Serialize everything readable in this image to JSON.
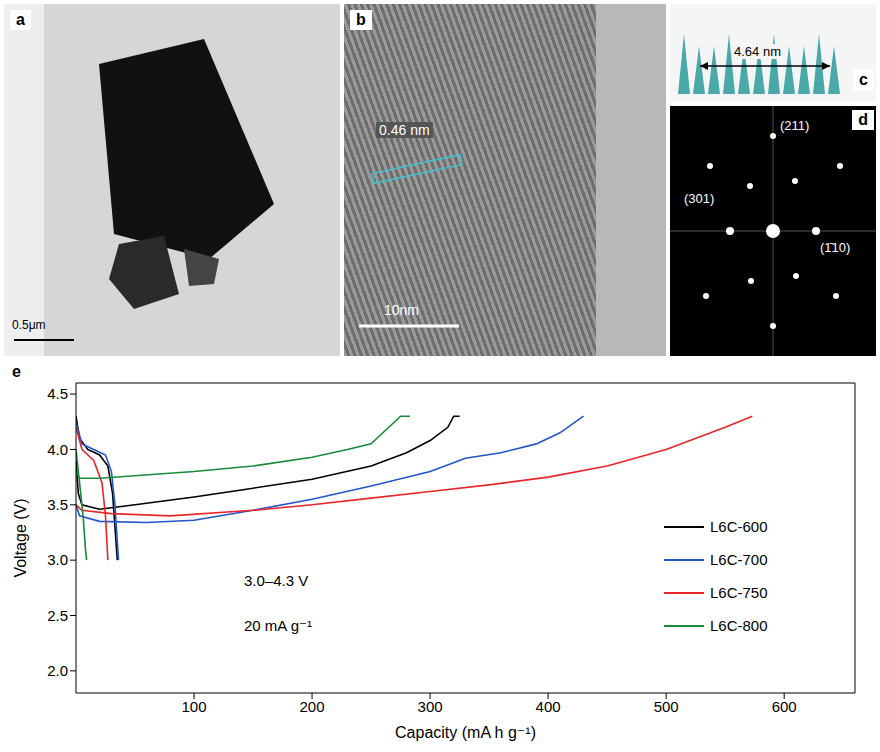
{
  "panels": [
    {
      "label": "a",
      "scale_bar": "0.5μm"
    },
    {
      "label": "b",
      "spacing": "0.46 nm",
      "scale_bar": "10nm"
    },
    {
      "label": "c",
      "distance": "4.64 nm"
    },
    {
      "label": "d",
      "spots": [
        "(211)",
        "(301)",
        "(1̄10)"
      ]
    }
  ],
  "chart_data": {
    "label": "e",
    "type": "line",
    "xlabel": "Capacity (mA h g⁻¹)",
    "ylabel": "Voltage (V)",
    "annotations": [
      "3.0–4.3 V",
      "20 mA g⁻¹"
    ],
    "xlim": [
      0,
      660
    ],
    "xticks": [
      100,
      200,
      300,
      400,
      500,
      600
    ],
    "ylim": [
      1.8,
      4.6
    ],
    "yticks": [
      {
        "value": 2,
        "label": "2.0"
      },
      2.5,
      {
        "value": 3,
        "label": "3.0"
      },
      3.5,
      {
        "value": 4,
        "label": "4.0"
      },
      4.5
    ],
    "legend": "right",
    "series": [
      {
        "name": "L6C-600",
        "color": "#000000",
        "x": [
          0,
          3,
          10,
          20,
          27,
          31,
          33,
          35,
          35,
          0,
          2,
          5,
          20,
          50,
          100,
          150,
          200,
          250,
          280,
          300,
          315,
          320,
          325
        ],
        "values": [
          4.3,
          4.1,
          4.0,
          3.95,
          3.85,
          3.6,
          3.3,
          3.0,
          null,
          3.9,
          3.6,
          3.5,
          3.46,
          3.5,
          3.57,
          3.65,
          3.73,
          3.85,
          3.97,
          4.08,
          4.2,
          4.3,
          4.3
        ]
      },
      {
        "name": "L6C-700",
        "color": "#2255cc",
        "x": [
          0,
          5,
          15,
          25,
          30,
          33,
          36,
          36,
          0,
          3,
          20,
          60,
          100,
          150,
          200,
          250,
          300,
          330,
          360,
          390,
          410,
          430
        ],
        "values": [
          4.25,
          4.05,
          4.0,
          3.95,
          3.8,
          3.5,
          3.0,
          null,
          3.5,
          3.4,
          3.35,
          3.34,
          3.36,
          3.45,
          3.55,
          3.67,
          3.8,
          3.92,
          3.97,
          4.05,
          4.15,
          4.3
        ]
      },
      {
        "name": "L6C-750",
        "color": "#e8262a",
        "x": [
          0,
          5,
          15,
          22,
          25,
          27,
          27,
          0,
          5,
          30,
          80,
          150,
          200,
          250,
          300,
          350,
          400,
          450,
          500,
          550,
          573
        ],
        "values": [
          4.2,
          4.0,
          3.9,
          3.7,
          3.4,
          3.0,
          null,
          3.5,
          3.45,
          3.42,
          3.4,
          3.45,
          3.5,
          3.56,
          3.62,
          3.68,
          3.75,
          3.85,
          4.0,
          4.2,
          4.3
        ]
      },
      {
        "name": "L6C-800",
        "color": "#1a8a3a",
        "x": [
          0,
          3,
          6,
          8,
          9,
          9,
          0,
          3,
          20,
          100,
          150,
          200,
          230,
          250,
          265,
          275,
          283
        ],
        "values": [
          4.0,
          3.7,
          3.4,
          3.1,
          3.0,
          null,
          3.8,
          3.74,
          3.74,
          3.8,
          3.85,
          3.93,
          4.0,
          4.05,
          4.2,
          4.3,
          4.3
        ]
      }
    ]
  }
}
